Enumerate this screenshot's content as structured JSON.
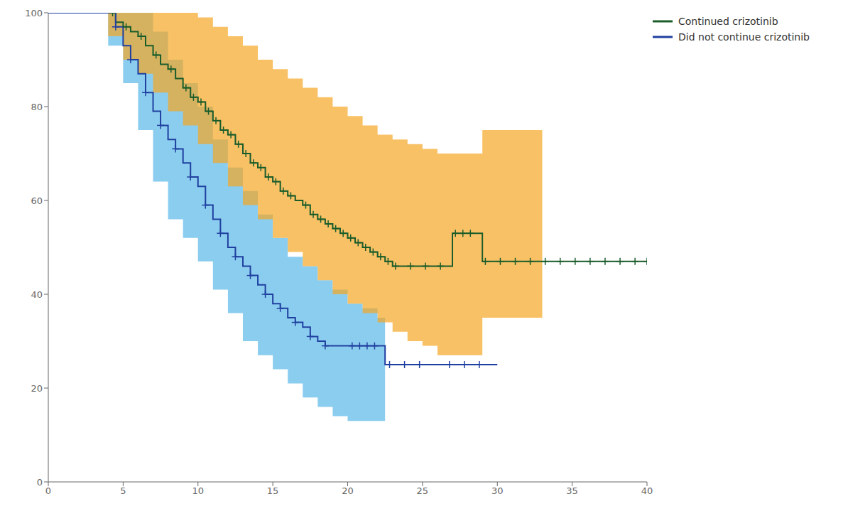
{
  "chart_data": {
    "type": "line",
    "xlim": [
      0,
      40
    ],
    "ylim": [
      0,
      100
    ],
    "xticks": [
      0,
      5,
      10,
      15,
      20,
      25,
      30,
      35,
      40
    ],
    "yticks": [
      0,
      20,
      40,
      60,
      80,
      100
    ],
    "grid": false,
    "legend": "upper right",
    "series": [
      {
        "type": "area",
        "line_style": "step",
        "color": "#5ab8e8",
        "x": [
          0,
          4.0,
          5.0,
          6.0,
          7.0,
          8.0,
          9.0,
          10.0,
          11.0,
          12.0,
          13.0,
          14.0,
          15.0,
          16.0,
          17.0,
          18.0,
          19.0,
          20.0,
          21.0,
          22.0,
          22.5
        ],
        "upper": [
          100,
          100,
          100,
          100,
          96,
          90,
          85,
          80,
          73,
          67,
          62,
          57,
          52,
          48,
          46,
          43,
          41,
          38,
          37,
          35,
          35
        ],
        "lower": [
          100,
          93,
          85,
          75,
          64,
          56,
          52,
          47,
          41,
          36,
          30,
          27,
          24,
          21,
          18,
          16,
          14,
          13,
          13,
          13,
          13
        ]
      },
      {
        "type": "area",
        "line_style": "step",
        "color": "#f5a623",
        "x": [
          0,
          4.0,
          5.0,
          6.0,
          7.0,
          8.0,
          9.0,
          10.0,
          11.0,
          12.0,
          13.0,
          14.0,
          15.0,
          16.0,
          17.0,
          18.0,
          19.0,
          20.0,
          21.0,
          22.0,
          23.0,
          24.0,
          25.0,
          26.0,
          27.0,
          28.0,
          29.0,
          30.0,
          33.0
        ],
        "upper": [
          100,
          100,
          100,
          100,
          100,
          100,
          100,
          99,
          97,
          95,
          93,
          90,
          88,
          86,
          84,
          82,
          80,
          78,
          76,
          74,
          73,
          72,
          71,
          70,
          70,
          70,
          75,
          75,
          35
        ],
        "lower": [
          100,
          95,
          90,
          87,
          83,
          79,
          76,
          72,
          68,
          63,
          59,
          56,
          52,
          49,
          46,
          43,
          40,
          38,
          36,
          34,
          32,
          30,
          29,
          27,
          27,
          27,
          35,
          35,
          35
        ]
      },
      {
        "name": "Continued crizotinib",
        "type": "line",
        "line_style": "step",
        "color": "#1a5c2a",
        "x": [
          0,
          4.0,
          4.5,
          5.0,
          5.5,
          6.0,
          6.5,
          7.0,
          7.5,
          8.0,
          8.5,
          9.0,
          9.5,
          10.0,
          10.5,
          11.0,
          11.5,
          12.0,
          12.5,
          13.0,
          13.5,
          14.0,
          14.5,
          15.0,
          15.5,
          16.0,
          16.5,
          17.0,
          17.5,
          18.0,
          18.5,
          19.0,
          19.5,
          20.0,
          20.5,
          21.0,
          21.5,
          22.0,
          22.5,
          23.0,
          23.5,
          24.0,
          24.5,
          25.0,
          25.5,
          26.0,
          26.5,
          27.0,
          27.5,
          28.0,
          28.5,
          29.0,
          40.0
        ],
        "values": [
          100,
          100,
          98,
          97,
          96,
          95,
          93,
          91,
          89,
          88,
          86,
          84,
          82,
          81,
          79,
          77,
          75,
          74,
          72,
          70,
          68,
          67,
          65,
          64,
          62,
          61,
          60,
          59,
          57,
          56,
          55,
          54,
          53,
          52,
          51,
          50,
          49,
          48,
          47,
          46,
          46,
          46,
          46,
          46,
          46,
          46,
          46,
          53,
          53,
          53,
          53,
          47,
          47
        ]
      },
      {
        "name": "Did not continue crizotinib",
        "type": "line",
        "line_style": "step",
        "color": "#2040a0",
        "x": [
          0,
          4.0,
          4.5,
          5.0,
          5.5,
          6.0,
          6.5,
          7.0,
          7.5,
          8.0,
          8.5,
          9.0,
          9.5,
          10.0,
          10.5,
          11.0,
          11.5,
          12.0,
          12.5,
          13.0,
          13.5,
          14.0,
          14.5,
          15.0,
          15.5,
          16.0,
          16.5,
          17.0,
          17.5,
          18.0,
          18.5,
          19.0,
          19.5,
          20.0,
          20.5,
          21.0,
          21.5,
          22.0,
          22.5,
          23.0,
          30.0
        ],
        "values": [
          100,
          100,
          97,
          93,
          90,
          87,
          83,
          79,
          76,
          73,
          71,
          68,
          65,
          63,
          59,
          56,
          53,
          50,
          48,
          46,
          44,
          42,
          40,
          38,
          37,
          35,
          34,
          33,
          31,
          30,
          29,
          29,
          29,
          29,
          29,
          29,
          29,
          29,
          25,
          25,
          25
        ]
      },
      {
        "type": "scatter",
        "marker": "plus",
        "color": "#1a5c2a",
        "x": [
          4.3,
          5.2,
          6.2,
          7.2,
          8.2,
          9.2,
          9.7,
          10.2,
          10.7,
          11.2,
          11.7,
          12.2,
          12.7,
          13.2,
          13.7,
          14.2,
          14.7,
          15.2,
          15.7,
          16.2,
          17.2,
          17.7,
          18.2,
          18.7,
          19.2,
          19.7,
          20.2,
          20.7,
          21.2,
          21.7,
          22.2,
          22.7,
          23.2,
          24.2,
          25.2,
          26.2,
          27.2,
          27.7,
          28.2,
          29.2,
          30.2,
          31.2,
          32.2,
          33.2,
          34.2,
          35.2,
          36.2,
          37.2,
          38.2,
          39.2,
          40.0
        ],
        "values": [
          100,
          97,
          95,
          91,
          88,
          84,
          82,
          81,
          79,
          77,
          75,
          74,
          72,
          70,
          68,
          67,
          65,
          64,
          62,
          61,
          59,
          57,
          56,
          55,
          54,
          53,
          52,
          51,
          50,
          49,
          48,
          47,
          46,
          46,
          46,
          46,
          53,
          53,
          53,
          47,
          47,
          47,
          47,
          47,
          47,
          47,
          47,
          47,
          47,
          47,
          47
        ]
      },
      {
        "type": "scatter",
        "marker": "plus",
        "color": "#2040a0",
        "x": [
          4.5,
          5.5,
          6.5,
          7.5,
          8.5,
          9.5,
          10.5,
          11.5,
          12.5,
          13.5,
          14.5,
          15.5,
          16.5,
          17.5,
          18.5,
          20.3,
          20.8,
          21.3,
          21.8,
          22.8,
          23.8,
          24.8,
          26.8,
          27.8,
          28.8
        ],
        "values": [
          97,
          90,
          83,
          76,
          71,
          65,
          59,
          53,
          48,
          44,
          40,
          37,
          34,
          31,
          29,
          29,
          29,
          29,
          29,
          25,
          25,
          25,
          25,
          25,
          25
        ]
      }
    ]
  }
}
